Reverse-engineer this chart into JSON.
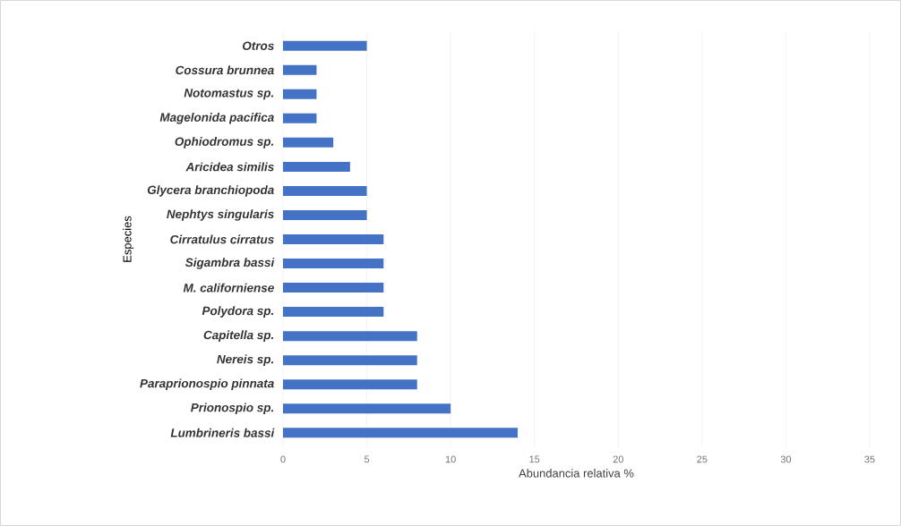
{
  "chart_data": {
    "type": "bar",
    "orientation": "horizontal",
    "xlabel": "Abundancia relativa %",
    "ylabel": "Especies",
    "categories": [
      "Otros",
      "Cossura brunnea",
      "Notomastus sp.",
      "Magelonida pacifica",
      "Ophiodromus sp.",
      "Aricidea similis",
      "Glycera branchiopoda",
      "Nephtys singularis",
      "Cirratulus cirratus",
      "Sigambra bassi",
      "M. californiense",
      "Polydora sp.",
      "Capitella sp.",
      "Nereis sp.",
      "Paraprionospio pinnata",
      "Prionospio sp.",
      "Lumbrineris bassi"
    ],
    "values": [
      5,
      2,
      2,
      2,
      3,
      4,
      5,
      5,
      6,
      6,
      6,
      6,
      8,
      8,
      8,
      10,
      14
    ],
    "color": "#4472c4",
    "xlim": [
      0,
      35
    ],
    "xticks": [
      0,
      5,
      10,
      15,
      20,
      25,
      30,
      35
    ],
    "grid": "x"
  }
}
